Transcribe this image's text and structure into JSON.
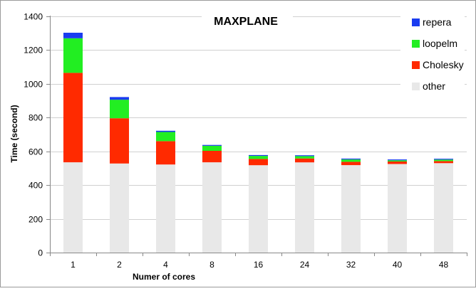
{
  "chart_data": {
    "type": "bar",
    "stacked": true,
    "title": "MAXPLANE",
    "xlabel": "Numer of cores",
    "ylabel": "Time (second)",
    "categories": [
      "1",
      "2",
      "4",
      "8",
      "16",
      "24",
      "32",
      "40",
      "48"
    ],
    "ylim": [
      0,
      1400
    ],
    "yticks": [
      0,
      200,
      400,
      600,
      800,
      1000,
      1200,
      1400
    ],
    "grid": true,
    "legend_position": "top-right",
    "series": [
      {
        "name": "other",
        "color": "#e8e8e8",
        "values": [
          535,
          528,
          522,
          535,
          518,
          535,
          518,
          525,
          530
        ]
      },
      {
        "name": "Cholesky",
        "color": "#ff2a00",
        "values": [
          530,
          268,
          138,
          68,
          37,
          23,
          20,
          15,
          12
        ]
      },
      {
        "name": "loopelm",
        "color": "#22ee22",
        "values": [
          205,
          110,
          55,
          30,
          18,
          14,
          14,
          7,
          9
        ]
      },
      {
        "name": "repera",
        "color": "#1a3cf0",
        "values": [
          33,
          16,
          7,
          5,
          5,
          5,
          5,
          5,
          5
        ]
      }
    ]
  }
}
